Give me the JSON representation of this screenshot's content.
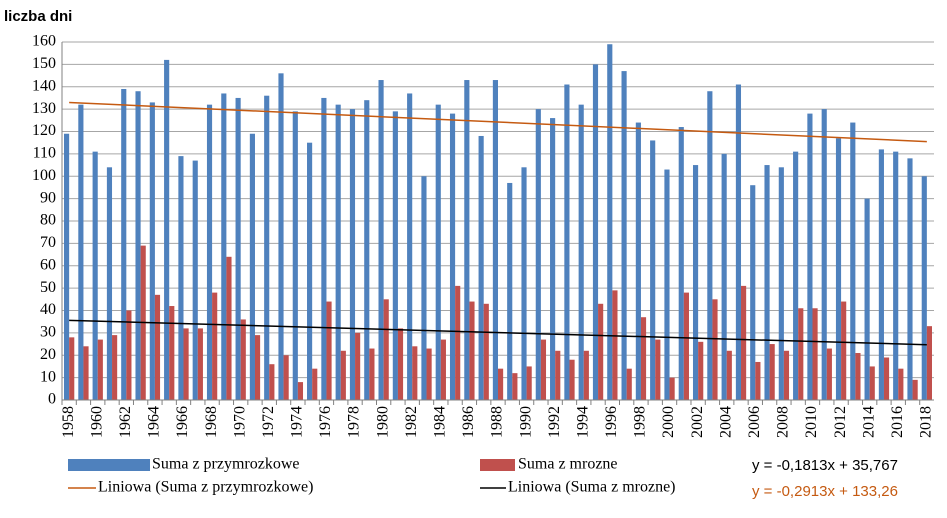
{
  "chart_data": {
    "type": "bar",
    "title": "liczba dni",
    "categories": [
      1958,
      null,
      1960,
      null,
      1962,
      null,
      1964,
      null,
      1966,
      null,
      1968,
      null,
      1970,
      null,
      1972,
      null,
      1974,
      null,
      1976,
      null,
      1978,
      null,
      1980,
      null,
      1982,
      null,
      1984,
      null,
      1986,
      null,
      1988,
      null,
      1990,
      null,
      1992,
      null,
      1994,
      null,
      1996,
      null,
      1998,
      null,
      2000,
      null,
      2002,
      null,
      2004,
      null,
      2006,
      null,
      2008,
      null,
      2010,
      null,
      2012,
      null,
      2014,
      null,
      2016,
      null,
      2018
    ],
    "series": [
      {
        "name": "Suma z przymrozkowe",
        "color": "#4f81bd",
        "values": [
          119,
          132,
          111,
          104,
          139,
          138,
          133,
          152,
          109,
          107,
          132,
          137,
          135,
          119,
          136,
          146,
          129,
          115,
          135,
          132,
          130,
          134,
          143,
          129,
          137,
          100,
          132,
          128,
          143,
          118,
          143,
          97,
          104,
          130,
          126,
          141,
          132,
          150,
          159,
          147,
          124,
          116,
          103,
          122,
          105,
          138,
          110,
          141,
          96,
          105,
          104,
          111,
          128,
          130,
          117,
          124,
          90,
          112,
          111,
          108,
          100
        ]
      },
      {
        "name": "Suma z mrozne",
        "color": "#c0504d",
        "values": [
          28,
          24,
          27,
          29,
          40,
          69,
          47,
          42,
          32,
          32,
          48,
          64,
          36,
          29,
          16,
          20,
          8,
          14,
          44,
          22,
          30,
          23,
          45,
          32,
          24,
          23,
          27,
          51,
          44,
          43,
          14,
          12,
          15,
          27,
          22,
          18,
          22,
          43,
          49,
          14,
          37,
          27,
          10,
          48,
          26,
          45,
          22,
          51,
          17,
          25,
          22,
          41,
          41,
          23,
          44,
          21,
          15,
          19,
          14,
          9,
          33
        ]
      }
    ],
    "trendlines": [
      {
        "name": "Liniowa (Suma z przymrozkowe)",
        "color": "#c55a11",
        "equation": "y = -0,2913x + 133,26",
        "slope": -0.2913,
        "intercept": 133.26
      },
      {
        "name": "Liniowa (Suma z mrozne)",
        "color": "#000000",
        "equation": "y = -0,1813x + 35,767",
        "slope": -0.1813,
        "intercept": 35.767
      }
    ],
    "ylim": [
      0,
      160
    ],
    "yticks": [
      0,
      10,
      20,
      30,
      40,
      50,
      60,
      70,
      80,
      90,
      100,
      110,
      120,
      130,
      140,
      150,
      160
    ],
    "grid": true
  }
}
